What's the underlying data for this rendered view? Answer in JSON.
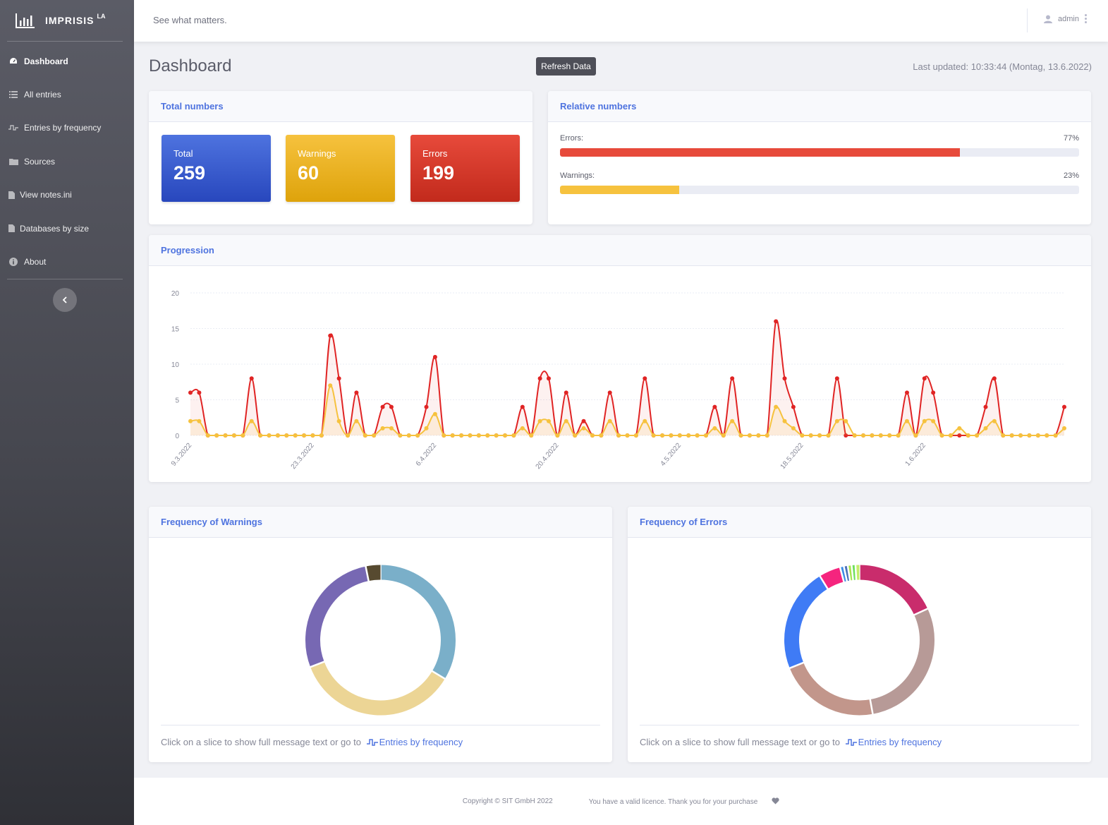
{
  "brand": {
    "name": "IMPRISIS",
    "sup": "LA"
  },
  "sidebar": {
    "items": [
      {
        "label": "Dashboard",
        "icon": "tachometer-icon",
        "active": true
      },
      {
        "label": "All entries",
        "icon": "list-icon"
      },
      {
        "label": "Entries by frequency",
        "icon": "pulse-icon"
      },
      {
        "label": "Sources",
        "icon": "folder-icon"
      },
      {
        "label": "View notes.ini",
        "icon": "file-icon"
      },
      {
        "label": "Databases by size",
        "icon": "file-icon"
      },
      {
        "label": "About",
        "icon": "info-icon"
      }
    ],
    "toggle_icon": "chevron-left-icon"
  },
  "topbar": {
    "tagline": "See what matters.",
    "user": "admin"
  },
  "header": {
    "title": "Dashboard",
    "refresh_label": "Refresh Data",
    "last_updated": "Last updated: 10:33:44 (Montag, 13.6.2022)"
  },
  "total_numbers": {
    "title": "Total numbers",
    "tiles": [
      {
        "label": "Total",
        "value": "259",
        "color": "#4e73df"
      },
      {
        "label": "Warnings",
        "value": "60",
        "color": "#f6c23e"
      },
      {
        "label": "Errors",
        "value": "199",
        "color": "#e74a3b"
      }
    ]
  },
  "relative_numbers": {
    "title": "Relative numbers",
    "rows": [
      {
        "label": "Errors:",
        "pct": "77%",
        "value": 0.77,
        "color": "#e74a3b"
      },
      {
        "label": "Warnings:",
        "pct": "23%",
        "value": 0.23,
        "color": "#f6c23e"
      }
    ]
  },
  "progression": {
    "title": "Progression"
  },
  "warnings_freq": {
    "title": "Frequency of Warnings",
    "foot_text": "Click on a slice to show full message text or go to",
    "link": "Entries by frequency"
  },
  "errors_freq": {
    "title": "Frequency of Errors",
    "foot_text": "Click on a slice to show full message text or go to",
    "link": "Entries by frequency"
  },
  "footer": {
    "copyright": "Copyright © SIT GmbH 2022",
    "licence": "You have a valid licence. Thank you for your purchase"
  },
  "chart_data": [
    {
      "type": "line",
      "title": "",
      "xlabel": "",
      "ylabel": "",
      "ylim": [
        0,
        20
      ],
      "yticks": [
        "0",
        "5",
        "10",
        "15",
        "20"
      ],
      "xtick_labels": [
        "9.3.2022",
        "23.3.2022",
        "6.4.2022",
        "20.4.2022",
        "4.5.2022",
        "18.5.2022",
        "1.6.2022"
      ],
      "grid": true,
      "series": [
        {
          "color": "#e02424",
          "values": [
            6,
            6,
            0,
            0,
            0,
            0,
            0,
            8,
            0,
            0,
            0,
            0,
            0,
            0,
            0,
            0,
            14,
            8,
            0,
            6,
            0,
            0,
            4,
            4,
            0,
            0,
            0,
            4,
            11,
            0,
            0,
            0,
            0,
            0,
            0,
            0,
            0,
            0,
            4,
            0,
            8,
            8,
            0,
            6,
            0,
            2,
            0,
            0,
            6,
            0,
            0,
            0,
            8,
            0,
            0,
            0,
            0,
            0,
            0,
            0,
            4,
            0,
            8,
            0,
            0,
            0,
            0,
            16,
            8,
            4,
            0,
            0,
            0,
            0,
            8,
            0,
            0,
            0,
            0,
            0,
            0,
            0,
            6,
            0,
            8,
            6,
            0,
            0,
            0,
            0,
            0,
            4,
            8,
            0,
            0,
            0,
            0,
            0,
            0,
            0,
            4
          ]
        },
        {
          "color": "#f6c23e",
          "values": [
            2,
            2,
            0,
            0,
            0,
            0,
            0,
            2,
            0,
            0,
            0,
            0,
            0,
            0,
            0,
            0,
            7,
            2,
            0,
            2,
            0,
            0,
            1,
            1,
            0,
            0,
            0,
            1,
            3,
            0,
            0,
            0,
            0,
            0,
            0,
            0,
            0,
            0,
            1,
            0,
            2,
            2,
            0,
            2,
            0,
            1,
            0,
            0,
            2,
            0,
            0,
            0,
            2,
            0,
            0,
            0,
            0,
            0,
            0,
            0,
            1,
            0,
            2,
            0,
            0,
            0,
            0,
            4,
            2,
            1,
            0,
            0,
            0,
            0,
            2,
            2,
            0,
            0,
            0,
            0,
            0,
            0,
            2,
            0,
            2,
            2,
            0,
            0,
            1,
            0,
            0,
            1,
            2,
            0,
            0,
            0,
            0,
            0,
            0,
            0,
            1
          ]
        }
      ]
    },
    {
      "type": "pie",
      "donut": true,
      "title": "",
      "slices": [
        {
          "value": 17,
          "color": "#7aafc9"
        },
        {
          "value": 18,
          "color": "#ecd595"
        },
        {
          "value": 14,
          "color": "#7768b3"
        },
        {
          "value": 1.6,
          "color": "#574a30"
        }
      ]
    },
    {
      "type": "pie",
      "donut": true,
      "title": "",
      "slices": [
        {
          "value": 35,
          "color": "#c92c6c"
        },
        {
          "value": 56,
          "color": "#b79a97"
        },
        {
          "value": 42,
          "color": "#c2968b"
        },
        {
          "value": 43,
          "color": "#3f7bf5"
        },
        {
          "value": 9,
          "color": "#f5247e"
        },
        {
          "value": 1.6,
          "color": "#3d8ce6"
        },
        {
          "value": 1.6,
          "color": "#4a6fb8"
        },
        {
          "value": 1.6,
          "color": "#a7e34d"
        },
        {
          "value": 1.6,
          "color": "#6fe05a"
        },
        {
          "value": 1.6,
          "color": "#c4ec6a"
        }
      ]
    }
  ]
}
